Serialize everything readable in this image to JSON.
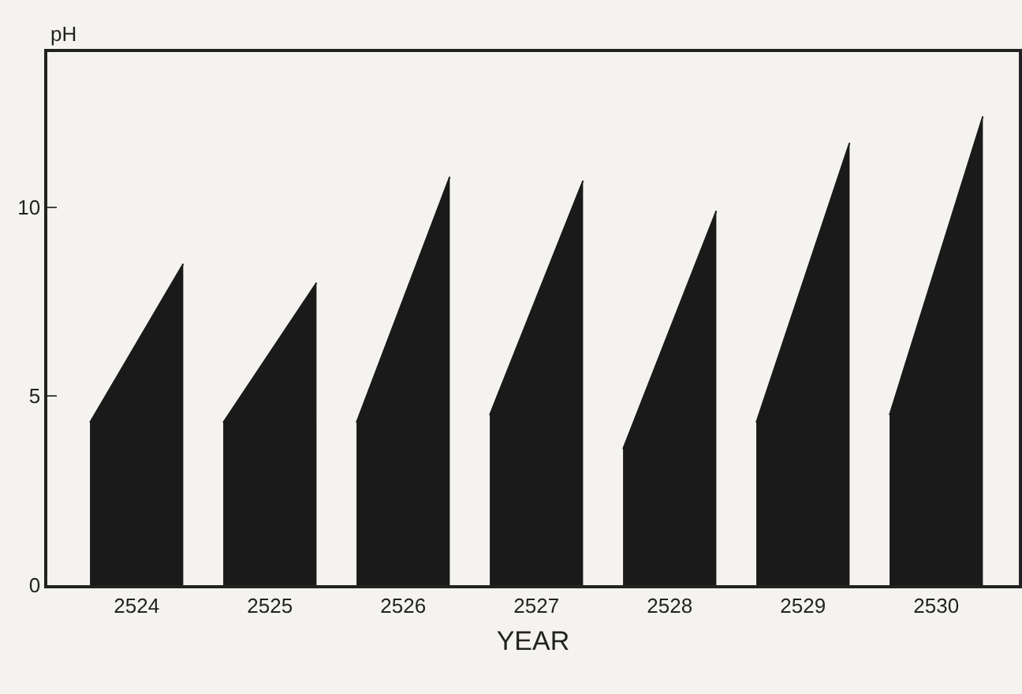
{
  "chart_data": {
    "type": "area",
    "xlabel": "YEAR",
    "ylabel": "pH",
    "xlim": [
      2523.33,
      2530.62
    ],
    "xticks": [
      2524,
      2525,
      2526,
      2527,
      2528,
      2529,
      2530
    ],
    "ylim": [
      0,
      14.1
    ],
    "yticks": [
      0,
      5,
      10
    ],
    "grid": false,
    "series": [
      {
        "color": "#1a1a1a",
        "x": [
          2523.65,
          2524.35
        ],
        "values": [
          4.3,
          8.5
        ]
      },
      {
        "color": "#1a1a1a",
        "x": [
          2524.65,
          2525.35
        ],
        "values": [
          4.3,
          8.0
        ]
      },
      {
        "color": "#1a1a1a",
        "x": [
          2525.65,
          2526.35
        ],
        "values": [
          4.3,
          10.8
        ]
      },
      {
        "color": "#1a1a1a",
        "x": [
          2526.65,
          2527.35
        ],
        "values": [
          4.5,
          10.7
        ]
      },
      {
        "color": "#1a1a1a",
        "x": [
          2527.65,
          2528.35
        ],
        "values": [
          3.6,
          9.9
        ]
      },
      {
        "color": "#1a1a1a",
        "x": [
          2528.65,
          2529.35
        ],
        "values": [
          4.3,
          11.7
        ]
      },
      {
        "color": "#1a1a1a",
        "x": [
          2529.65,
          2530.35
        ],
        "values": [
          4.5,
          12.4
        ]
      }
    ]
  }
}
